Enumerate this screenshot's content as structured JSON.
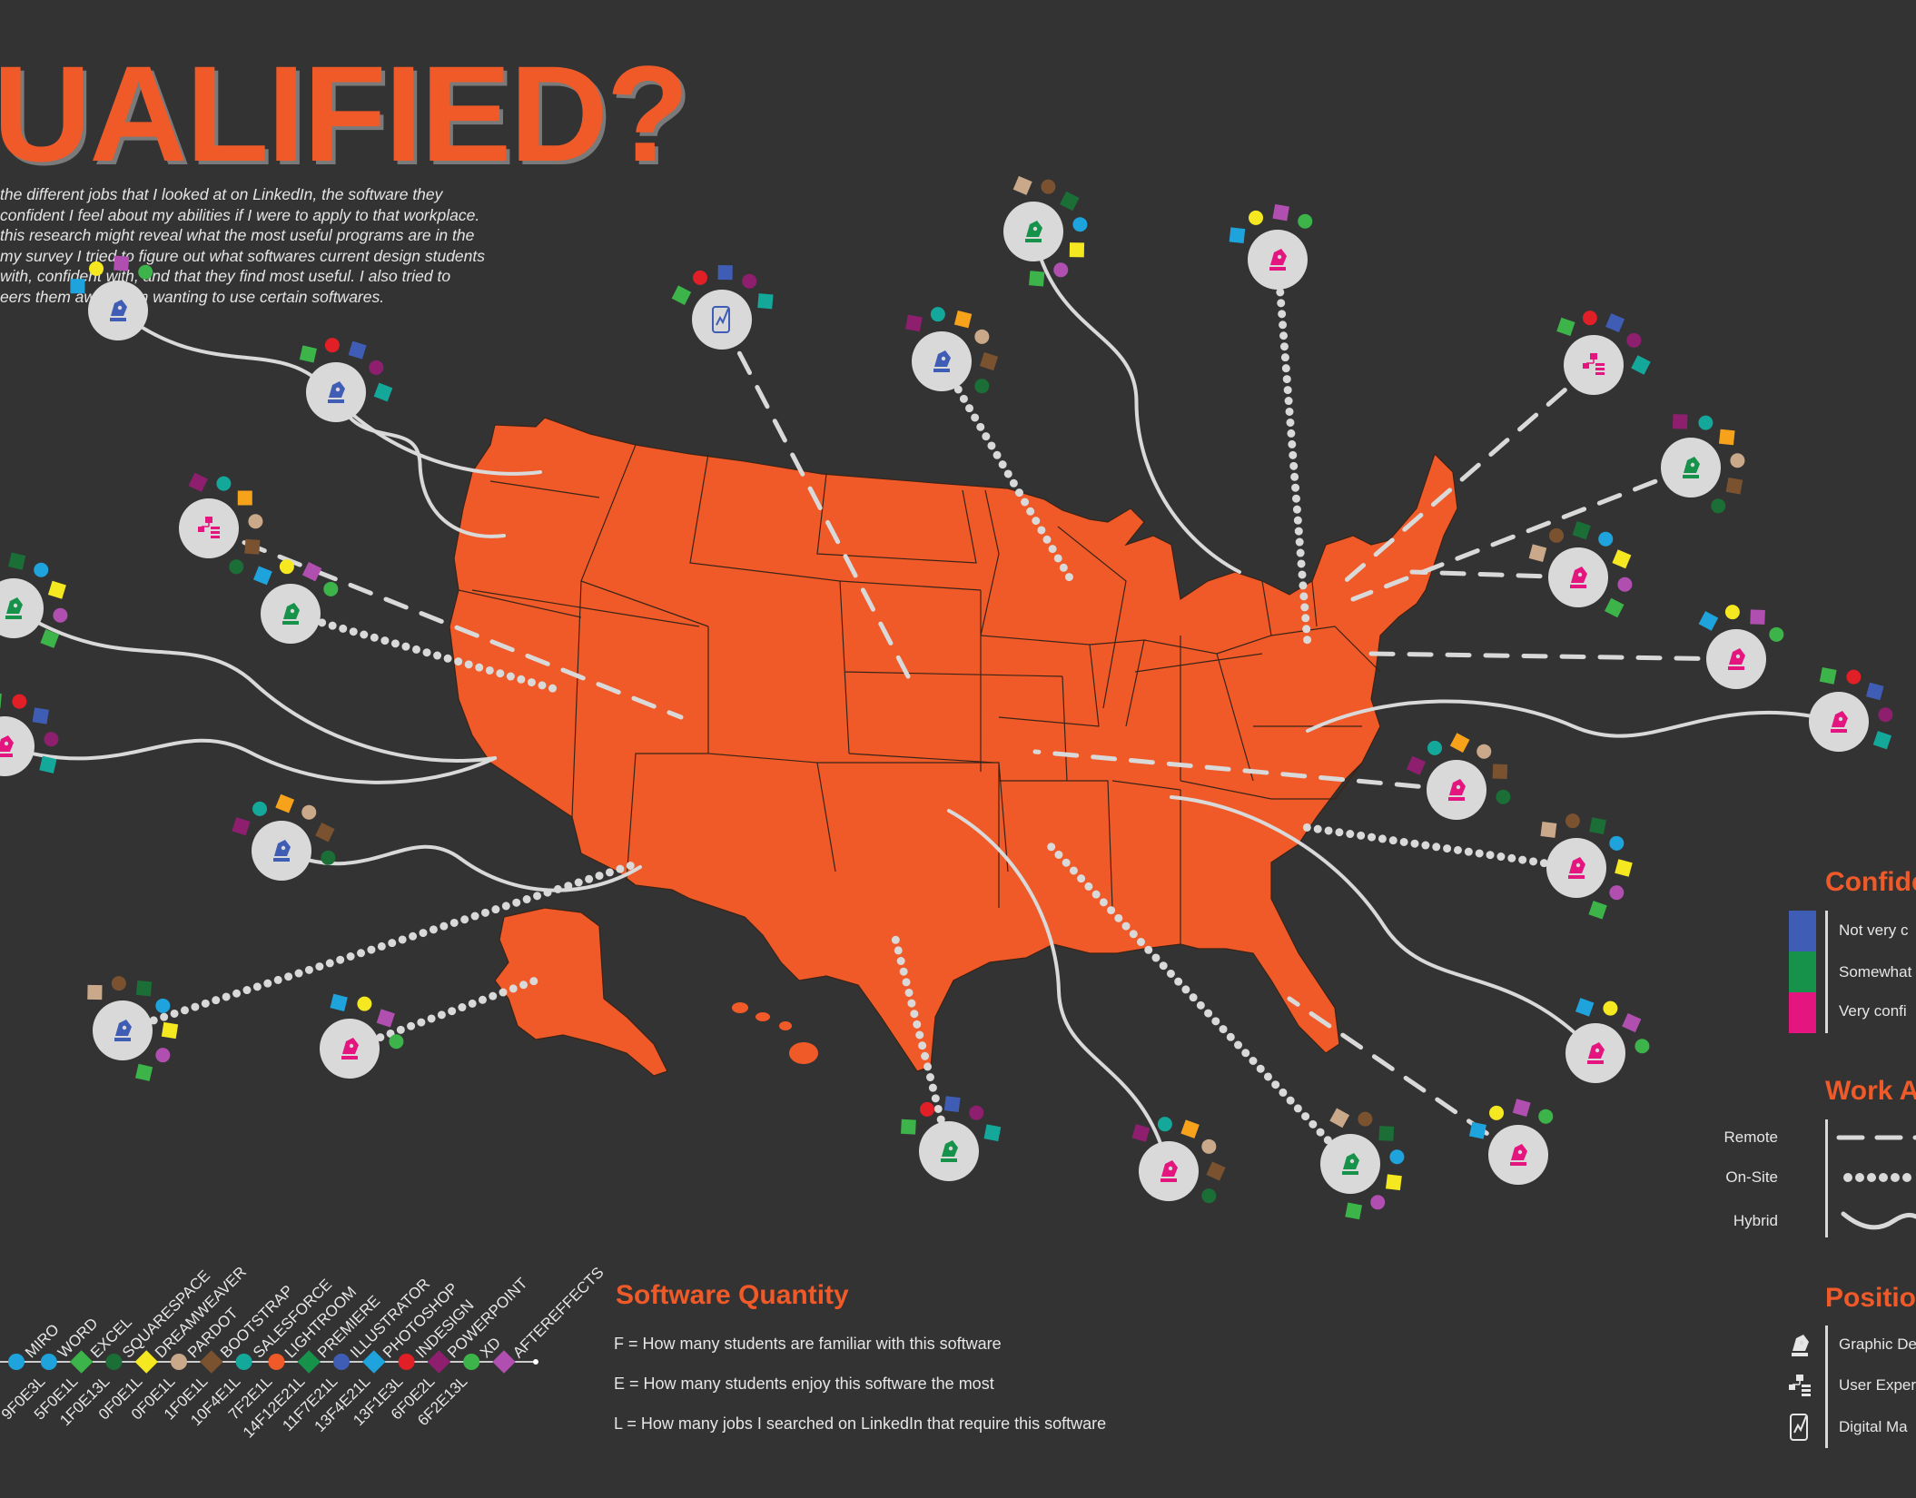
{
  "title": "UALIFIED?",
  "intro_lines": [
    "the different jobs that I looked at on LinkedIn, the software they",
    "confident I feel about my abilities if I were to apply to that workplace.",
    "this research might reveal what the most useful programs are in the",
    "my survey I tried to figure out what softwares current design students",
    "with, confident with, and that they find most useful. I also tried to",
    "eers them away from wanting to use certain softwares."
  ],
  "software_quantity": {
    "heading": "Software Quantity",
    "lines": [
      "F = How many students are familiar with this software",
      "E = How many students enjoy this software the most",
      "L = How many jobs I searched on LinkedIn that require this software"
    ]
  },
  "legend": {
    "confidence": {
      "heading": "Confide",
      "items": [
        {
          "label": "Not very c",
          "color": "#3f5db4"
        },
        {
          "label": "Somewhat",
          "color": "#17924a"
        },
        {
          "label": "Very confi",
          "color": "#e4157e"
        }
      ]
    },
    "work": {
      "heading": "Work A",
      "items": [
        {
          "label": "Remote",
          "style": "dashed"
        },
        {
          "label": "On-Site",
          "style": "dotted"
        },
        {
          "label": "Hybrid",
          "style": "wavy"
        }
      ]
    },
    "position": {
      "heading": "Positio",
      "items": [
        {
          "label": "Graphic De",
          "icon": "pen-nib-icon"
        },
        {
          "label": "User Exper",
          "icon": "flowchart-icon"
        },
        {
          "label": "Digital Ma",
          "icon": "phone-chart-icon"
        }
      ]
    }
  },
  "software_timeline": [
    {
      "name": "MIRO",
      "code": "",
      "color": "#1fa3dc",
      "shape": "circle"
    },
    {
      "name": "WORD",
      "code": "9F0E3L",
      "color": "#1fa3dc",
      "shape": "circle"
    },
    {
      "name": "EXCEL",
      "code": "5F0E1L",
      "color": "#3cb44a",
      "shape": "diamond"
    },
    {
      "name": "SQUARESPACE",
      "code": "1F0E13L",
      "color": "#1a6e36",
      "shape": "circle"
    },
    {
      "name": "DREAMWEAVER",
      "code": "0F0E1L",
      "color": "#f5e821",
      "shape": "diamond"
    },
    {
      "name": "PARDOT",
      "code": "0F0E1L",
      "color": "#c9a98a",
      "shape": "circle"
    },
    {
      "name": "BOOTSTRAP",
      "code": "1F0E1L",
      "color": "#7a5230",
      "shape": "diamond"
    },
    {
      "name": "SALESFORCE",
      "code": "10F4E1L",
      "color": "#14a89a",
      "shape": "circle"
    },
    {
      "name": "LIGHTROOM",
      "code": "7F2E1L",
      "color": "#f05a28",
      "shape": "circle"
    },
    {
      "name": "PREMIERE",
      "code": "14F12E21L",
      "color": "#17924a",
      "shape": "diamond"
    },
    {
      "name": "ILLUSTRATOR",
      "code": "11F7E21L",
      "color": "#3f5db4",
      "shape": "circle"
    },
    {
      "name": "PHOTOSHOP",
      "code": "13F4E21L",
      "color": "#1fa3dc",
      "shape": "diamond"
    },
    {
      "name": "INDESIGN",
      "code": "13F1E3L",
      "color": "#e01f26",
      "shape": "circle"
    },
    {
      "name": "POWERPOINT",
      "code": "6F0E2L",
      "color": "#8e1f6e",
      "shape": "diamond"
    },
    {
      "name": "XD",
      "code": "6F2E13L",
      "color": "#3cb44a",
      "shape": "circle"
    },
    {
      "name": "AFTEREFFECTS",
      "code": "",
      "color": "#b04fb0",
      "shape": "diamond"
    }
  ],
  "map": {
    "fill_color": "#f05a28",
    "border_color": "#3a2418",
    "state_labels": []
  },
  "jobs": [
    {
      "name": "job-ux-west-1",
      "position": "graphic-design",
      "confidence": "not-very",
      "work": "hybrid"
    }
  ]
}
